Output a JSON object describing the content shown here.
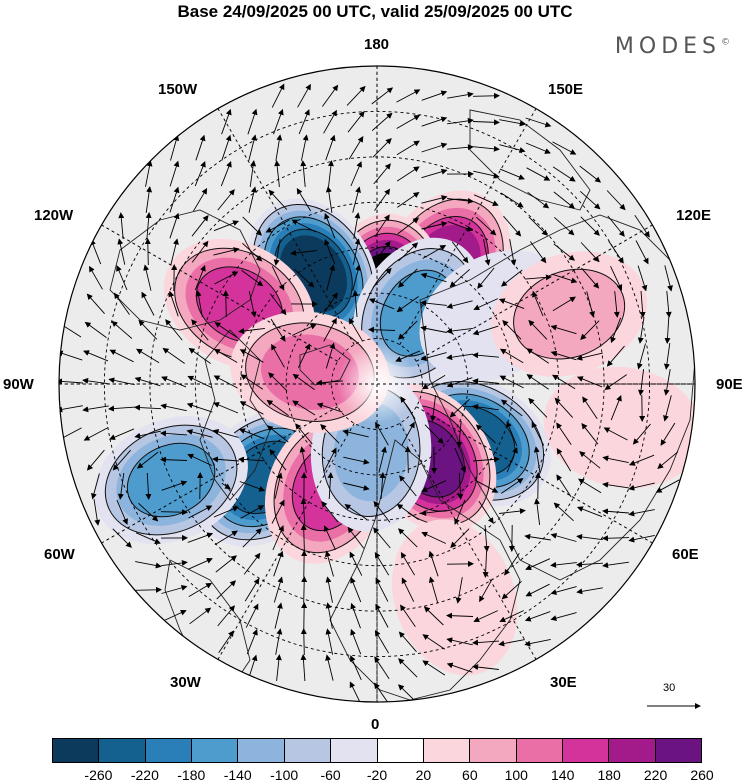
{
  "title": "Base 24/09/2025 00 UTC, valid 25/09/2025 00 UTC",
  "brand": "MODES",
  "brand_mark": "©",
  "longitude_labels": {
    "top": "180",
    "bottom": "0",
    "left": "90W",
    "right": "90E",
    "upper_left": "150W",
    "upper_right": "150E",
    "mid_left": "120W",
    "mid_right": "120E",
    "low_left": "60W",
    "low_right": "60E",
    "bottom_left": "30W",
    "bottom_right": "30E"
  },
  "vector_scale": "30",
  "colorbar": {
    "ticks": [
      "-260",
      "-220",
      "-180",
      "-140",
      "-100",
      "-60",
      "-20",
      "20",
      "60",
      "100",
      "140",
      "180",
      "220",
      "260"
    ],
    "colors": [
      "#0b3a5c",
      "#14608f",
      "#2a7fb8",
      "#4d9ccd",
      "#8db4dc",
      "#b7c6e3",
      "#e2e2f0",
      "#ffffff",
      "#fbd6dc",
      "#f4a8bf",
      "#ea6fa6",
      "#d3339a",
      "#a31a8a",
      "#6b1380"
    ]
  },
  "anomaly_centers": [
    {
      "lon": 150,
      "lat": 60,
      "value": 220
    },
    {
      "lon": 175,
      "lat": 70,
      "value": 300
    },
    {
      "lon": 210,
      "lat": 62,
      "value": -280
    },
    {
      "lon": 240,
      "lat": 55,
      "value": 180
    },
    {
      "lon": 150,
      "lat": 72,
      "value": -160
    },
    {
      "lon": 120,
      "lat": 60,
      "value": -60
    },
    {
      "lon": 60,
      "lat": 65,
      "value": -230
    },
    {
      "lon": 35,
      "lat": 70,
      "value": 240
    },
    {
      "lon": 110,
      "lat": 45,
      "value": 100
    },
    {
      "lon": 310,
      "lat": 58,
      "value": -240
    },
    {
      "lon": 335,
      "lat": 65,
      "value": 160
    },
    {
      "lon": 355,
      "lat": 75,
      "value": -120
    },
    {
      "lon": 295,
      "lat": 40,
      "value": -150
    },
    {
      "lon": 260,
      "lat": 75,
      "value": 110
    },
    {
      "lon": 20,
      "lat": 40,
      "value": 50
    },
    {
      "lon": 80,
      "lat": 35,
      "value": 60
    }
  ]
}
